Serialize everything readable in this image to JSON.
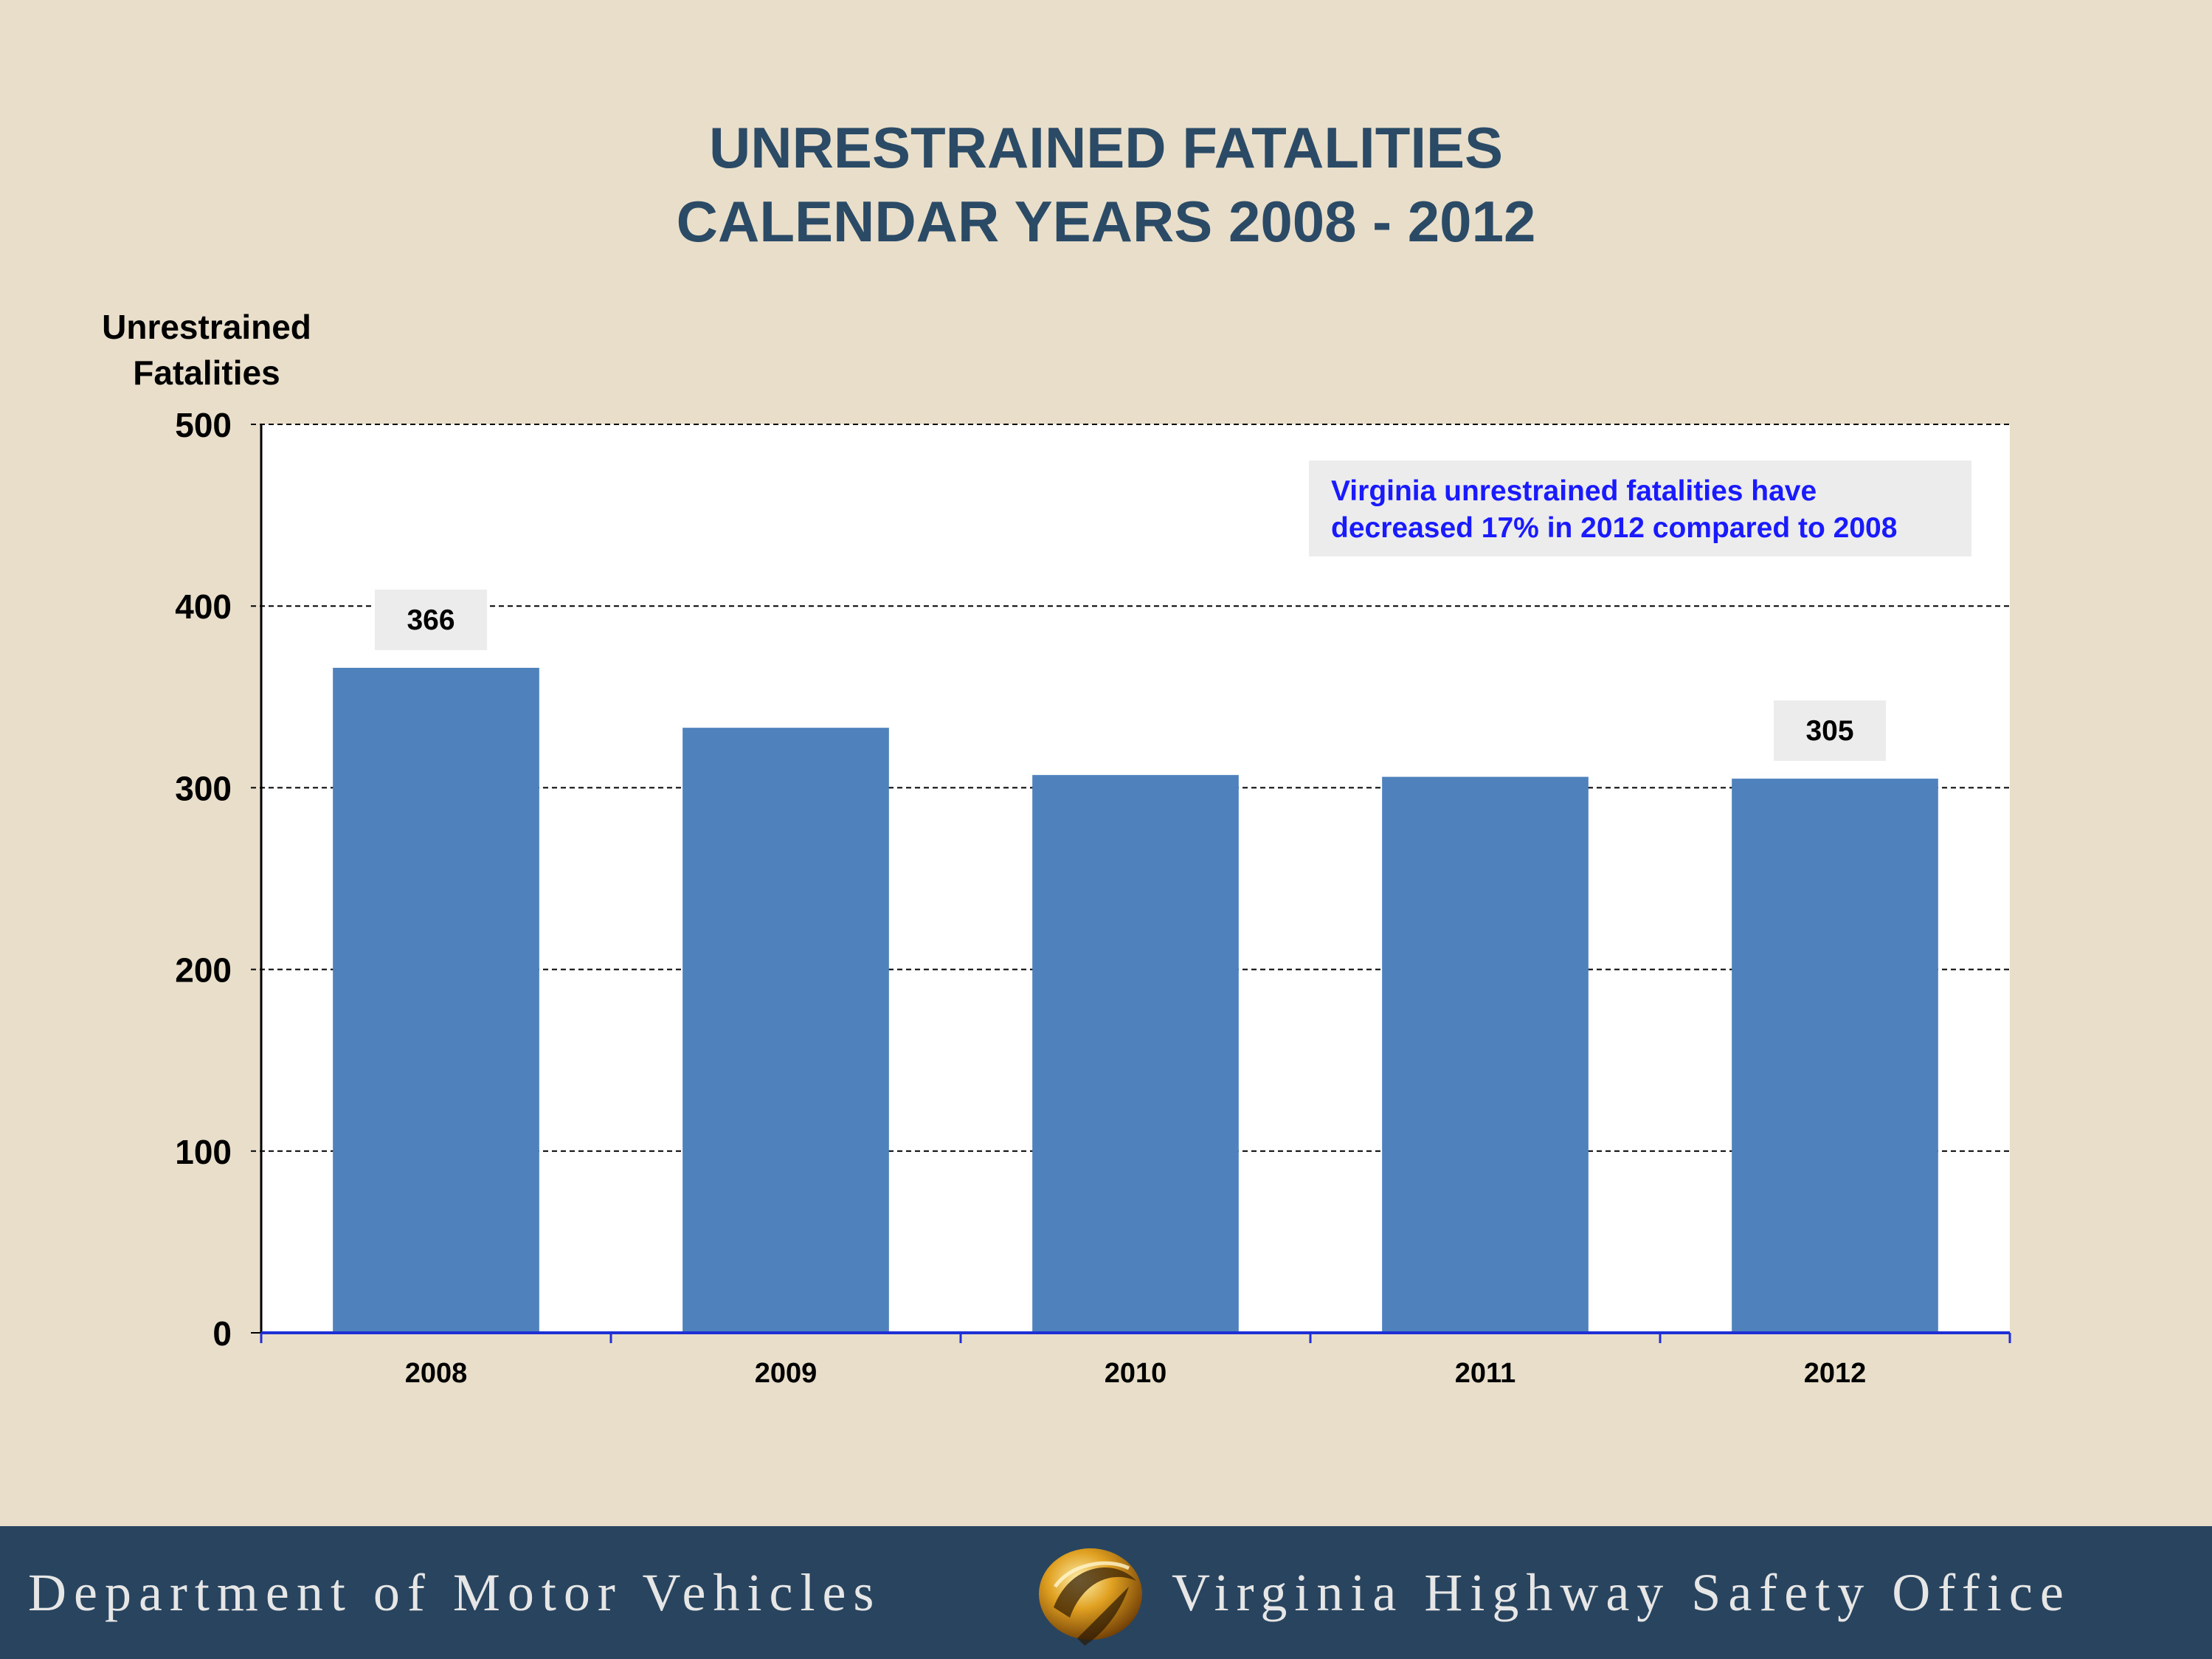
{
  "title_lines": [
    "UNRESTRAINED FATALITIES",
    "CALENDAR YEARS 2008 - 2012"
  ],
  "annotation_lines": [
    "Virginia unrestrained fatalities have",
    "decreased 17%  in 2012 compared to 2008"
  ],
  "footer": {
    "left_text": "Department of Motor Vehicles",
    "right_text": "Virginia Highway Safety Office",
    "logo_icon": "swirl-logo-icon"
  },
  "chart_data": {
    "type": "bar",
    "categories": [
      "2008",
      "2009",
      "2010",
      "2011",
      "2012"
    ],
    "values": [
      366,
      333,
      307,
      306,
      305
    ],
    "data_labels": [
      {
        "category": "2008",
        "text": "366"
      },
      {
        "category": "2012",
        "text": "305"
      }
    ],
    "ylabel_lines": [
      "Unrestrained",
      "Fatalities"
    ],
    "ylim": [
      0,
      500
    ],
    "yticks": [
      0,
      100,
      200,
      300,
      400,
      500
    ],
    "grid": "dashed horizontal",
    "bar_color": "#4f81bd",
    "legend": "none"
  }
}
